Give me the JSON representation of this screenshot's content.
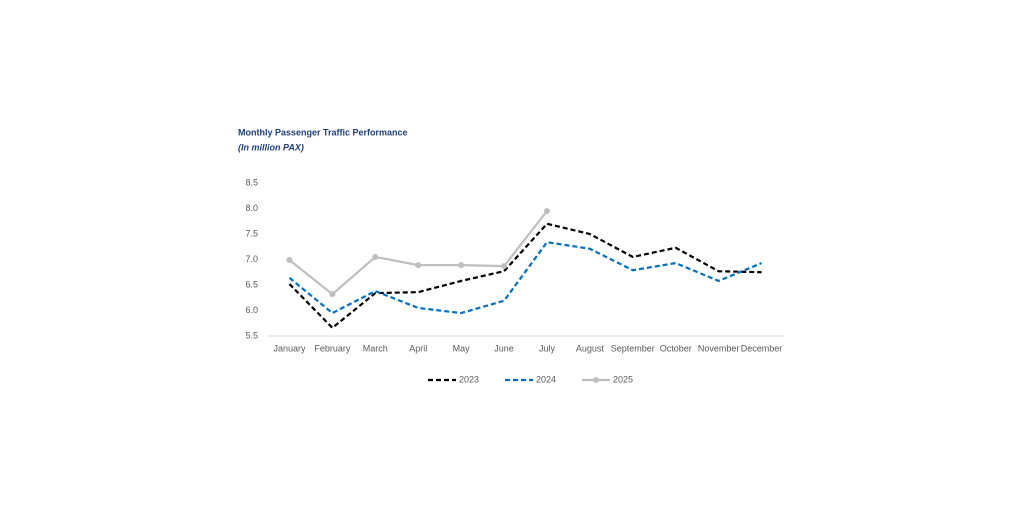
{
  "chart_data": {
    "type": "line",
    "title": "Monthly Passenger Traffic Performance",
    "subtitle": "(In million PAX)",
    "categories": [
      "January",
      "February",
      "March",
      "April",
      "May",
      "June",
      "July",
      "August",
      "September",
      "October",
      "November",
      "December"
    ],
    "series": [
      {
        "name": "2023",
        "color": "#000000",
        "line_style": "dashed",
        "markers": false,
        "values": [
          6.52,
          5.66,
          6.34,
          6.36,
          6.58,
          6.77,
          7.7,
          7.5,
          7.05,
          7.23,
          6.77,
          6.75
        ]
      },
      {
        "name": "2024",
        "color": "#0070c0",
        "line_style": "dashed",
        "markers": false,
        "values": [
          6.64,
          5.95,
          6.38,
          6.05,
          5.95,
          6.19,
          7.34,
          7.21,
          6.79,
          6.93,
          6.58,
          6.93
        ]
      },
      {
        "name": "2025",
        "color": "#bfbfbf",
        "line_style": "solid",
        "markers": true,
        "values": [
          6.99,
          6.32,
          7.05,
          6.89,
          6.89,
          6.87,
          7.95,
          null,
          null,
          null,
          null,
          null
        ]
      }
    ],
    "ylim": [
      5.5,
      8.5
    ],
    "yticks": [
      5.5,
      {
        "value": 6,
        "label": "6.0"
      },
      6.5,
      {
        "value": 7,
        "label": "7.0"
      },
      7.5,
      {
        "value": 8,
        "label": "8.0"
      },
      8.5
    ],
    "grid": false,
    "legend": "bottom"
  }
}
